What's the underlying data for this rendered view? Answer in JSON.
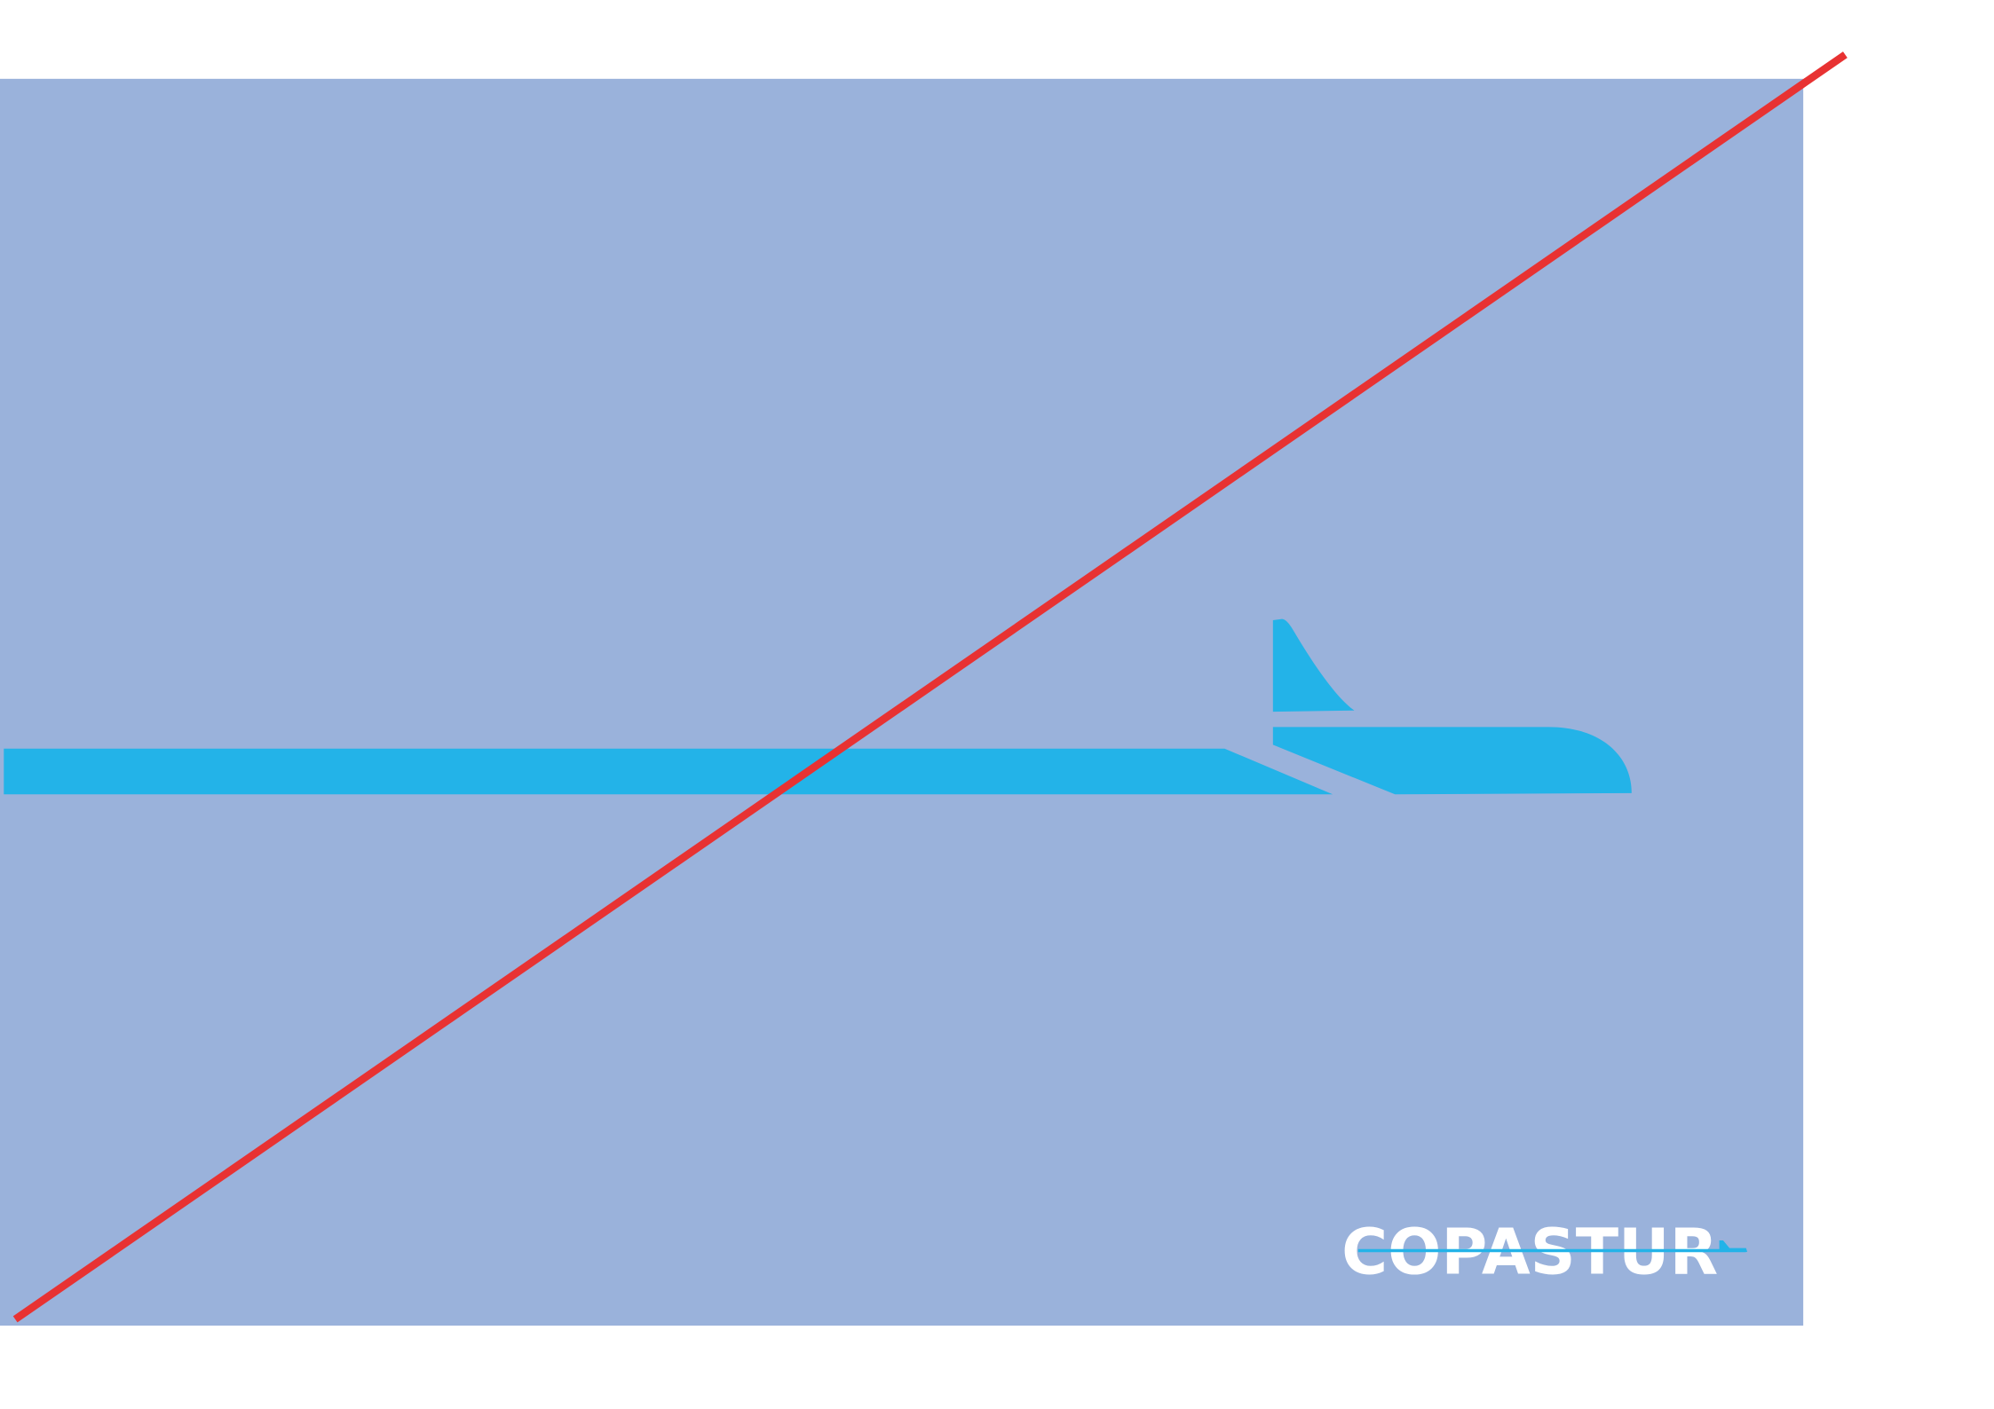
{
  "logo": {
    "text": "COPASTUR"
  }
}
